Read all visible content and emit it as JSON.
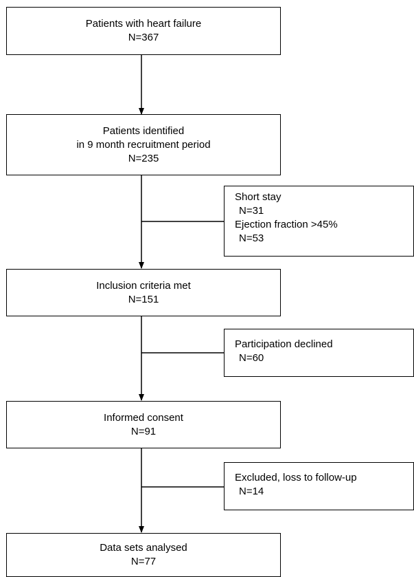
{
  "boxes": {
    "total": {
      "title": "Patients with heart failure",
      "count": "N=367"
    },
    "identified": {
      "line1": "Patients identified",
      "line2": "in 9 month recruitment period",
      "count": "N=235"
    },
    "excluded_criteria": {
      "reason1": "Short stay",
      "count1": "N=31",
      "reason2": "Ejection fraction >45%",
      "count2": "N=53"
    },
    "inclusion": {
      "title": "Inclusion criteria met",
      "count": "N=151"
    },
    "declined": {
      "reason": "Participation declined",
      "count": "N=60"
    },
    "consent": {
      "title": "Informed consent",
      "count": "N=91"
    },
    "lost": {
      "reason": "Excluded, loss to follow-up",
      "count": "N=14"
    },
    "analysed": {
      "title": "Data sets analysed",
      "count": "N=77"
    }
  }
}
